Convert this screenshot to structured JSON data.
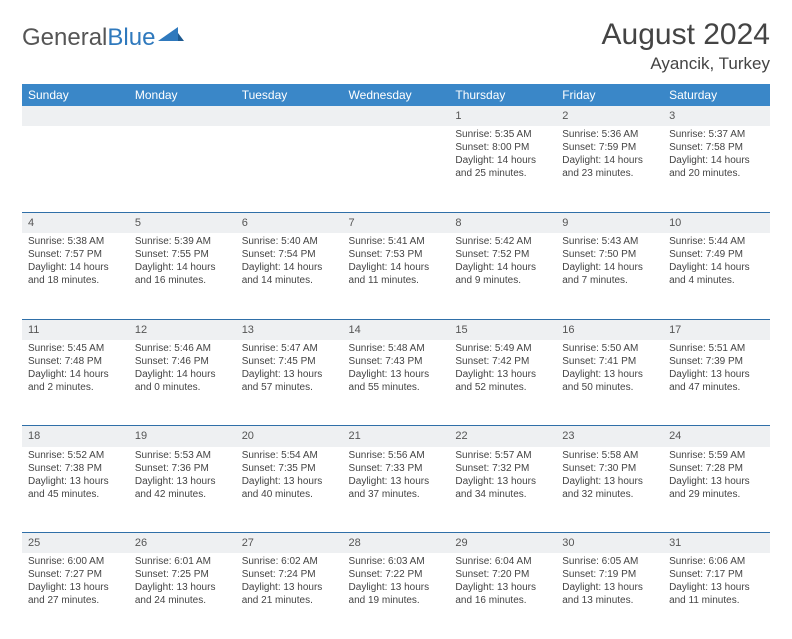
{
  "logo": {
    "text1": "General",
    "text2": "Blue"
  },
  "title": "August 2024",
  "location": "Ayancik, Turkey",
  "colors": {
    "header_bg": "#3a87c8",
    "header_text": "#ffffff",
    "daynum_bg": "#eef0f2",
    "row_border": "#2f6fa8",
    "text": "#444444",
    "logo_gray": "#555555",
    "logo_blue": "#2f79bd",
    "page_bg": "#ffffff"
  },
  "day_headers": [
    "Sunday",
    "Monday",
    "Tuesday",
    "Wednesday",
    "Thursday",
    "Friday",
    "Saturday"
  ],
  "weeks": [
    [
      {
        "num": "",
        "lines": []
      },
      {
        "num": "",
        "lines": []
      },
      {
        "num": "",
        "lines": []
      },
      {
        "num": "",
        "lines": []
      },
      {
        "num": "1",
        "lines": [
          "Sunrise: 5:35 AM",
          "Sunset: 8:00 PM",
          "Daylight: 14 hours and 25 minutes."
        ]
      },
      {
        "num": "2",
        "lines": [
          "Sunrise: 5:36 AM",
          "Sunset: 7:59 PM",
          "Daylight: 14 hours and 23 minutes."
        ]
      },
      {
        "num": "3",
        "lines": [
          "Sunrise: 5:37 AM",
          "Sunset: 7:58 PM",
          "Daylight: 14 hours and 20 minutes."
        ]
      }
    ],
    [
      {
        "num": "4",
        "lines": [
          "Sunrise: 5:38 AM",
          "Sunset: 7:57 PM",
          "Daylight: 14 hours and 18 minutes."
        ]
      },
      {
        "num": "5",
        "lines": [
          "Sunrise: 5:39 AM",
          "Sunset: 7:55 PM",
          "Daylight: 14 hours and 16 minutes."
        ]
      },
      {
        "num": "6",
        "lines": [
          "Sunrise: 5:40 AM",
          "Sunset: 7:54 PM",
          "Daylight: 14 hours and 14 minutes."
        ]
      },
      {
        "num": "7",
        "lines": [
          "Sunrise: 5:41 AM",
          "Sunset: 7:53 PM",
          "Daylight: 14 hours and 11 minutes."
        ]
      },
      {
        "num": "8",
        "lines": [
          "Sunrise: 5:42 AM",
          "Sunset: 7:52 PM",
          "Daylight: 14 hours and 9 minutes."
        ]
      },
      {
        "num": "9",
        "lines": [
          "Sunrise: 5:43 AM",
          "Sunset: 7:50 PM",
          "Daylight: 14 hours and 7 minutes."
        ]
      },
      {
        "num": "10",
        "lines": [
          "Sunrise: 5:44 AM",
          "Sunset: 7:49 PM",
          "Daylight: 14 hours and 4 minutes."
        ]
      }
    ],
    [
      {
        "num": "11",
        "lines": [
          "Sunrise: 5:45 AM",
          "Sunset: 7:48 PM",
          "Daylight: 14 hours and 2 minutes."
        ]
      },
      {
        "num": "12",
        "lines": [
          "Sunrise: 5:46 AM",
          "Sunset: 7:46 PM",
          "Daylight: 14 hours and 0 minutes."
        ]
      },
      {
        "num": "13",
        "lines": [
          "Sunrise: 5:47 AM",
          "Sunset: 7:45 PM",
          "Daylight: 13 hours and 57 minutes."
        ]
      },
      {
        "num": "14",
        "lines": [
          "Sunrise: 5:48 AM",
          "Sunset: 7:43 PM",
          "Daylight: 13 hours and 55 minutes."
        ]
      },
      {
        "num": "15",
        "lines": [
          "Sunrise: 5:49 AM",
          "Sunset: 7:42 PM",
          "Daylight: 13 hours and 52 minutes."
        ]
      },
      {
        "num": "16",
        "lines": [
          "Sunrise: 5:50 AM",
          "Sunset: 7:41 PM",
          "Daylight: 13 hours and 50 minutes."
        ]
      },
      {
        "num": "17",
        "lines": [
          "Sunrise: 5:51 AM",
          "Sunset: 7:39 PM",
          "Daylight: 13 hours and 47 minutes."
        ]
      }
    ],
    [
      {
        "num": "18",
        "lines": [
          "Sunrise: 5:52 AM",
          "Sunset: 7:38 PM",
          "Daylight: 13 hours and 45 minutes."
        ]
      },
      {
        "num": "19",
        "lines": [
          "Sunrise: 5:53 AM",
          "Sunset: 7:36 PM",
          "Daylight: 13 hours and 42 minutes."
        ]
      },
      {
        "num": "20",
        "lines": [
          "Sunrise: 5:54 AM",
          "Sunset: 7:35 PM",
          "Daylight: 13 hours and 40 minutes."
        ]
      },
      {
        "num": "21",
        "lines": [
          "Sunrise: 5:56 AM",
          "Sunset: 7:33 PM",
          "Daylight: 13 hours and 37 minutes."
        ]
      },
      {
        "num": "22",
        "lines": [
          "Sunrise: 5:57 AM",
          "Sunset: 7:32 PM",
          "Daylight: 13 hours and 34 minutes."
        ]
      },
      {
        "num": "23",
        "lines": [
          "Sunrise: 5:58 AM",
          "Sunset: 7:30 PM",
          "Daylight: 13 hours and 32 minutes."
        ]
      },
      {
        "num": "24",
        "lines": [
          "Sunrise: 5:59 AM",
          "Sunset: 7:28 PM",
          "Daylight: 13 hours and 29 minutes."
        ]
      }
    ],
    [
      {
        "num": "25",
        "lines": [
          "Sunrise: 6:00 AM",
          "Sunset: 7:27 PM",
          "Daylight: 13 hours and 27 minutes."
        ]
      },
      {
        "num": "26",
        "lines": [
          "Sunrise: 6:01 AM",
          "Sunset: 7:25 PM",
          "Daylight: 13 hours and 24 minutes."
        ]
      },
      {
        "num": "27",
        "lines": [
          "Sunrise: 6:02 AM",
          "Sunset: 7:24 PM",
          "Daylight: 13 hours and 21 minutes."
        ]
      },
      {
        "num": "28",
        "lines": [
          "Sunrise: 6:03 AM",
          "Sunset: 7:22 PM",
          "Daylight: 13 hours and 19 minutes."
        ]
      },
      {
        "num": "29",
        "lines": [
          "Sunrise: 6:04 AM",
          "Sunset: 7:20 PM",
          "Daylight: 13 hours and 16 minutes."
        ]
      },
      {
        "num": "30",
        "lines": [
          "Sunrise: 6:05 AM",
          "Sunset: 7:19 PM",
          "Daylight: 13 hours and 13 minutes."
        ]
      },
      {
        "num": "31",
        "lines": [
          "Sunrise: 6:06 AM",
          "Sunset: 7:17 PM",
          "Daylight: 13 hours and 11 minutes."
        ]
      }
    ]
  ]
}
